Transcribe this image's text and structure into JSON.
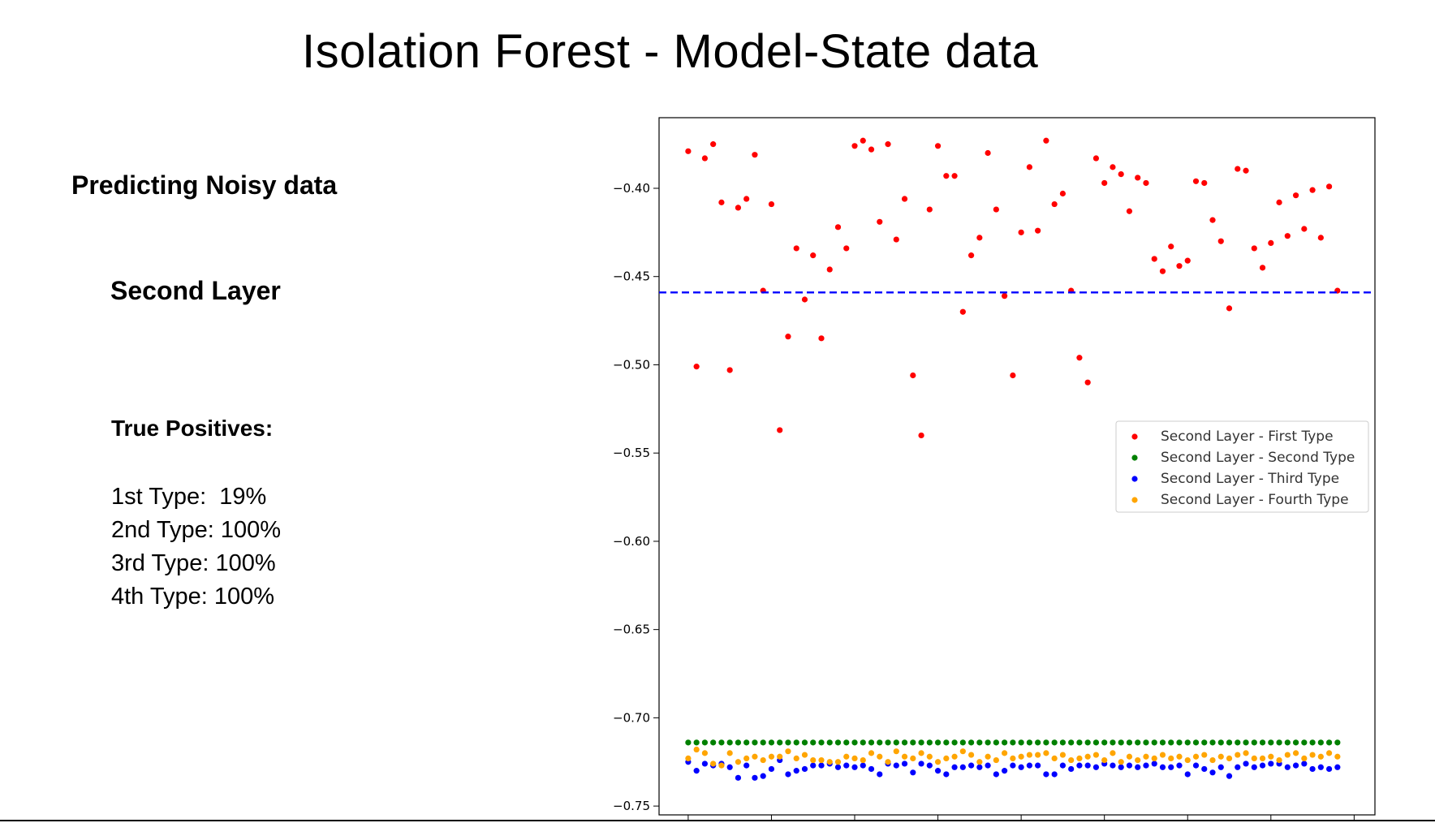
{
  "slide": {
    "title": "Isolation Forest - Model-State data",
    "heading": "Predicting Noisy data",
    "subheading": "Second Layer",
    "tp_heading": "True Positives:",
    "rates": [
      {
        "label": "1st Type:",
        "value": "19%"
      },
      {
        "label": "2nd Type:",
        "value": "100%"
      },
      {
        "label": "3rd Type:",
        "value": "100%"
      },
      {
        "label": "4th Type:",
        "value": "100%"
      }
    ]
  },
  "chart_data": {
    "type": "scatter",
    "title": "",
    "xlabel": "",
    "ylabel": "",
    "ylim": [
      -0.755,
      -0.36
    ],
    "xlim": [
      -3.5,
      82.5
    ],
    "yticks": [
      -0.4,
      -0.45,
      -0.5,
      -0.55,
      -0.6,
      -0.65,
      -0.7,
      -0.75
    ],
    "ytick_labels": [
      "−0.40",
      "−0.45",
      "−0.50",
      "−0.55",
      "−0.60",
      "−0.65",
      "−0.70",
      "−0.75"
    ],
    "xticks": [
      0,
      10,
      20,
      30,
      40,
      50,
      60,
      70,
      80
    ],
    "threshold": {
      "y": -0.459,
      "color": "#0000ff",
      "style": "dashed"
    },
    "legend": {
      "position": "center-right"
    },
    "series": [
      {
        "name": "Second Layer - First Type",
        "color": "#ff0000",
        "y": [
          -0.379,
          -0.501,
          -0.383,
          -0.375,
          -0.408,
          -0.503,
          -0.411,
          -0.406,
          -0.381,
          -0.458,
          -0.409,
          -0.537,
          -0.484,
          -0.434,
          -0.463,
          -0.438,
          -0.485,
          -0.446,
          -0.422,
          -0.434,
          -0.376,
          -0.373,
          -0.378,
          -0.419,
          -0.375,
          -0.429,
          -0.406,
          -0.506,
          -0.54,
          -0.412,
          -0.376,
          -0.393,
          -0.393,
          -0.47,
          -0.438,
          -0.428,
          -0.38,
          -0.412,
          -0.461,
          -0.506,
          -0.425,
          -0.388,
          -0.424,
          -0.373,
          -0.409,
          -0.403,
          -0.458,
          -0.496,
          -0.51,
          -0.383,
          -0.397,
          -0.388,
          -0.392,
          -0.413,
          -0.394,
          -0.397,
          -0.44,
          -0.447,
          -0.433,
          -0.444,
          -0.441,
          -0.396,
          -0.397,
          -0.418,
          -0.43,
          -0.468,
          -0.389,
          -0.39,
          -0.434,
          -0.445,
          -0.431,
          -0.408,
          -0.427,
          -0.404,
          -0.423,
          -0.401,
          -0.428,
          -0.399,
          -0.458
        ]
      },
      {
        "name": "Second Layer - Second Type",
        "color": "#008000",
        "y": [
          -0.714,
          -0.714,
          -0.714,
          -0.714,
          -0.714,
          -0.714,
          -0.714,
          -0.714,
          -0.714,
          -0.714,
          -0.714,
          -0.714,
          -0.714,
          -0.714,
          -0.714,
          -0.714,
          -0.714,
          -0.714,
          -0.714,
          -0.714,
          -0.714,
          -0.714,
          -0.714,
          -0.714,
          -0.714,
          -0.714,
          -0.714,
          -0.714,
          -0.714,
          -0.714,
          -0.714,
          -0.714,
          -0.714,
          -0.714,
          -0.714,
          -0.714,
          -0.714,
          -0.714,
          -0.714,
          -0.714,
          -0.714,
          -0.714,
          -0.714,
          -0.714,
          -0.714,
          -0.714,
          -0.714,
          -0.714,
          -0.714,
          -0.714,
          -0.714,
          -0.714,
          -0.714,
          -0.714,
          -0.714,
          -0.714,
          -0.714,
          -0.714,
          -0.714,
          -0.714,
          -0.714,
          -0.714,
          -0.714,
          -0.714,
          -0.714,
          -0.714,
          -0.714,
          -0.714,
          -0.714,
          -0.714,
          -0.714,
          -0.714,
          -0.714,
          -0.714,
          -0.714,
          -0.714,
          -0.714,
          -0.714,
          -0.714
        ]
      },
      {
        "name": "Second Layer - Third Type",
        "color": "#0000ff",
        "y": [
          -0.725,
          -0.73,
          -0.726,
          -0.727,
          -0.726,
          -0.728,
          -0.734,
          -0.727,
          -0.734,
          -0.733,
          -0.729,
          -0.724,
          -0.732,
          -0.73,
          -0.729,
          -0.727,
          -0.727,
          -0.726,
          -0.728,
          -0.727,
          -0.728,
          -0.727,
          -0.729,
          -0.732,
          -0.726,
          -0.727,
          -0.726,
          -0.731,
          -0.726,
          -0.727,
          -0.73,
          -0.732,
          -0.728,
          -0.728,
          -0.727,
          -0.728,
          -0.727,
          -0.732,
          -0.73,
          -0.727,
          -0.728,
          -0.727,
          -0.727,
          -0.732,
          -0.732,
          -0.727,
          -0.729,
          -0.727,
          -0.727,
          -0.728,
          -0.726,
          -0.727,
          -0.728,
          -0.727,
          -0.728,
          -0.727,
          -0.726,
          -0.728,
          -0.728,
          -0.727,
          -0.732,
          -0.727,
          -0.729,
          -0.731,
          -0.728,
          -0.733,
          -0.728,
          -0.726,
          -0.728,
          -0.727,
          -0.726,
          -0.726,
          -0.728,
          -0.727,
          -0.726,
          -0.729,
          -0.728,
          -0.729,
          -0.728
        ]
      },
      {
        "name": "Second Layer - Fourth Type",
        "color": "#ffa500",
        "y": [
          -0.723,
          -0.718,
          -0.72,
          -0.726,
          -0.727,
          -0.72,
          -0.725,
          -0.723,
          -0.722,
          -0.724,
          -0.722,
          -0.722,
          -0.719,
          -0.723,
          -0.721,
          -0.724,
          -0.724,
          -0.725,
          -0.725,
          -0.722,
          -0.723,
          -0.724,
          -0.72,
          -0.722,
          -0.725,
          -0.719,
          -0.722,
          -0.723,
          -0.72,
          -0.722,
          -0.725,
          -0.723,
          -0.722,
          -0.719,
          -0.721,
          -0.725,
          -0.722,
          -0.724,
          -0.72,
          -0.723,
          -0.722,
          -0.721,
          -0.721,
          -0.72,
          -0.723,
          -0.721,
          -0.724,
          -0.723,
          -0.722,
          -0.721,
          -0.724,
          -0.72,
          -0.725,
          -0.722,
          -0.724,
          -0.722,
          -0.723,
          -0.721,
          -0.723,
          -0.722,
          -0.724,
          -0.722,
          -0.721,
          -0.724,
          -0.722,
          -0.723,
          -0.721,
          -0.72,
          -0.723,
          -0.723,
          -0.722,
          -0.724,
          -0.721,
          -0.72,
          -0.723,
          -0.721,
          -0.722,
          -0.72,
          -0.722
        ]
      }
    ]
  }
}
